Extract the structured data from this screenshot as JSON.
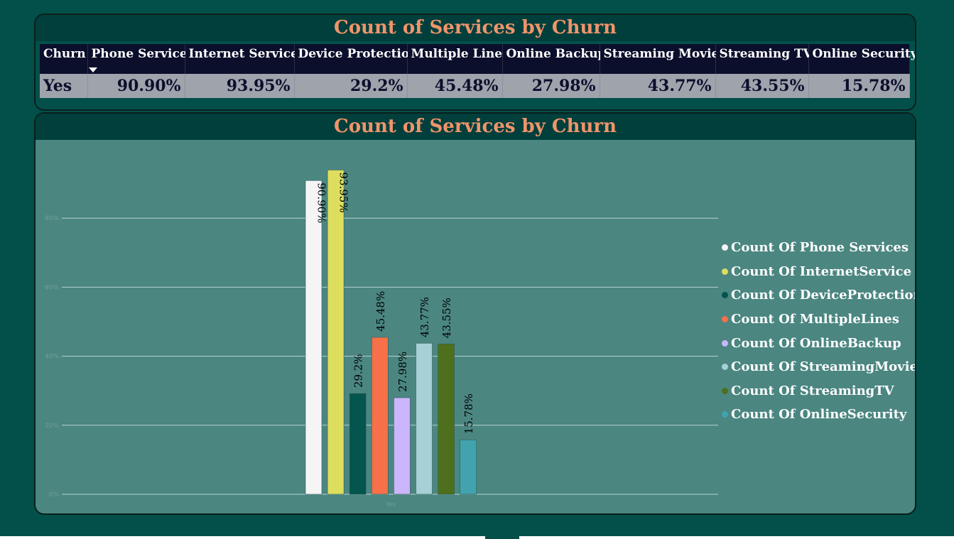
{
  "table_panel": {
    "title": "Count of Services by Churn",
    "headers": [
      "Churn",
      "Phone Services",
      "Internet Services",
      "Device Protection",
      "Multiple Lines",
      "Online Backup",
      "Streaming Movies",
      "Streaming TV",
      "Online Security"
    ],
    "row": [
      "Yes",
      "90.90%",
      "93.95%",
      "29.2%",
      "45.48%",
      "27.98%",
      "43.77%",
      "43.55%",
      "15.78%"
    ]
  },
  "chart_panel": {
    "title": "Count of Services by Churn"
  },
  "chart_data": {
    "type": "bar",
    "title": "Count of Services by Churn",
    "categories": [
      "Yes"
    ],
    "xlabel": "",
    "ylabel": "",
    "ylim": [
      0,
      100
    ],
    "yticks": [
      "0%",
      "20%",
      "40%",
      "60%",
      "80%"
    ],
    "grid": true,
    "legend_position": "right",
    "series": [
      {
        "name": "Count Of Phone Services",
        "values": [
          90.9
        ],
        "label": "90.90%",
        "color": "#f5f5f5"
      },
      {
        "name": "Count Of InternetService",
        "values": [
          93.95
        ],
        "label": "93.95%",
        "color": "#dede5e"
      },
      {
        "name": "Count Of DeviceProtection",
        "values": [
          29.2
        ],
        "label": "29.2%",
        "color": "#03554d"
      },
      {
        "name": "Count Of MultipleLines",
        "values": [
          45.48
        ],
        "label": "45.48%",
        "color": "#f77048"
      },
      {
        "name": "Count Of OnlineBackup",
        "values": [
          27.98
        ],
        "label": "27.98%",
        "color": "#cbb5fb"
      },
      {
        "name": "Count Of StreamingMovies",
        "values": [
          43.77
        ],
        "label": "43.77%",
        "color": "#a6d0d5"
      },
      {
        "name": "Count Of StreamingTV",
        "values": [
          43.55
        ],
        "label": "43.55%",
        "color": "#4e6f1b"
      },
      {
        "name": "Count Of OnlineSecurity",
        "values": [
          15.78
        ],
        "label": "15.78%",
        "color": "#41a3ad"
      }
    ]
  }
}
